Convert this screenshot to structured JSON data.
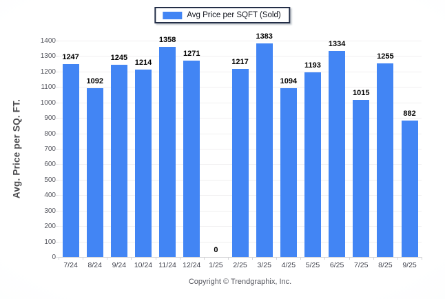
{
  "legend": {
    "label": "Avg Price per SQFT (Sold)",
    "swatch_color": "#4285f4"
  },
  "footer": {
    "text": "Copyright © Trendgraphix, Inc."
  },
  "colors": {
    "bar": "#4285f4",
    "gridline": "#f0eff0",
    "axis_line": "#d4d4d6",
    "value_label": "#000000",
    "tick_label": "#55565e",
    "x_label": "#3d3f4a",
    "edge_vignette": "#d5dde9",
    "legend_border": "#232e47"
  },
  "chart_data": {
    "type": "bar",
    "title": "",
    "xlabel": "",
    "ylabel": "Avg. Price per SQ. FT.",
    "ylim": [
      0,
      1400
    ],
    "ytick_step": 100,
    "grid": true,
    "legend_position": "top-center",
    "categories": [
      "7/24",
      "8/24",
      "9/24",
      "10/24",
      "11/24",
      "12/24",
      "1/25",
      "2/25",
      "3/25",
      "4/25",
      "5/25",
      "6/25",
      "7/25",
      "8/25",
      "9/25"
    ],
    "series": [
      {
        "name": "Avg Price per SQFT (Sold)",
        "color": "#4285f4",
        "values": [
          1247,
          1092,
          1245,
          1214,
          1358,
          1271,
          0,
          1217,
          1383,
          1094,
          1193,
          1334,
          1015,
          1255,
          882
        ]
      }
    ],
    "value_labels_shown": true
  }
}
